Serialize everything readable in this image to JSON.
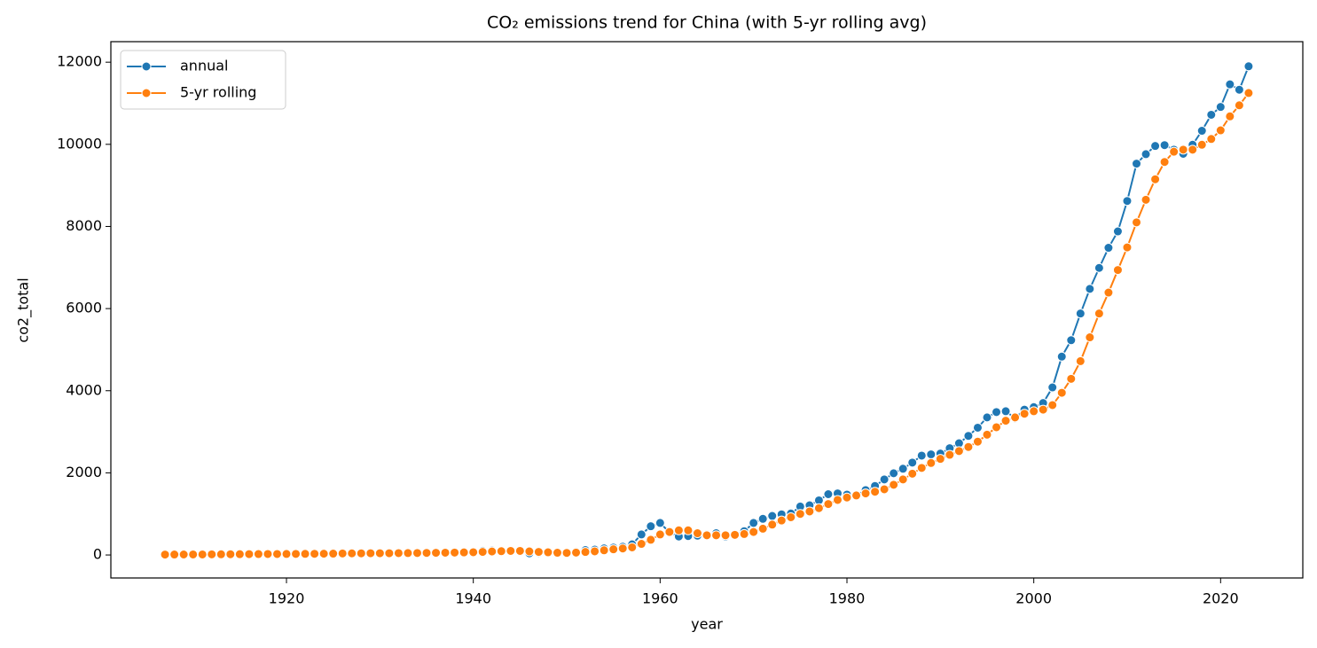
{
  "chart_data": {
    "type": "line",
    "title": "CO₂ emissions trend for China (with 5-yr rolling avg)",
    "x_label": "year",
    "y_label": "co2_total",
    "x": [
      1907,
      1908,
      1909,
      1910,
      1911,
      1912,
      1913,
      1914,
      1915,
      1916,
      1917,
      1918,
      1919,
      1920,
      1921,
      1922,
      1923,
      1924,
      1925,
      1926,
      1927,
      1928,
      1929,
      1930,
      1931,
      1932,
      1933,
      1934,
      1935,
      1936,
      1937,
      1938,
      1939,
      1940,
      1941,
      1942,
      1943,
      1944,
      1945,
      1946,
      1947,
      1948,
      1949,
      1950,
      1951,
      1952,
      1953,
      1954,
      1955,
      1956,
      1957,
      1958,
      1959,
      1960,
      1961,
      1962,
      1963,
      1964,
      1965,
      1966,
      1967,
      1968,
      1969,
      1970,
      1971,
      1972,
      1973,
      1974,
      1975,
      1976,
      1977,
      1978,
      1979,
      1980,
      1981,
      1982,
      1983,
      1984,
      1985,
      1986,
      1987,
      1988,
      1989,
      1990,
      1991,
      1992,
      1993,
      1994,
      1995,
      1996,
      1997,
      1998,
      1999,
      2000,
      2001,
      2002,
      2003,
      2004,
      2005,
      2006,
      2007,
      2008,
      2009,
      2010,
      2011,
      2012,
      2013,
      2014,
      2015,
      2016,
      2017,
      2018,
      2019,
      2020,
      2021,
      2022,
      2023
    ],
    "series": [
      {
        "name": "annual",
        "color": "#1f77b4",
        "values": [
          10,
          12,
          14,
          15,
          16,
          18,
          20,
          20,
          22,
          24,
          26,
          25,
          24,
          26,
          28,
          30,
          35,
          38,
          40,
          42,
          40,
          42,
          44,
          45,
          46,
          48,
          50,
          52,
          55,
          60,
          62,
          65,
          70,
          80,
          100,
          110,
          105,
          100,
          80,
          40,
          50,
          55,
          50,
          60,
          80,
          120,
          130,
          160,
          180,
          200,
          260,
          500,
          700,
          780,
          550,
          450,
          460,
          470,
          500,
          530,
          450,
          480,
          580,
          780,
          880,
          950,
          990,
          1010,
          1180,
          1210,
          1330,
          1480,
          1500,
          1470,
          1450,
          1580,
          1680,
          1840,
          1990,
          2100,
          2250,
          2420,
          2450,
          2470,
          2600,
          2720,
          2900,
          3100,
          3350,
          3480,
          3500,
          3330,
          3540,
          3600,
          3700,
          4080,
          4830,
          5230,
          5880,
          6480,
          6990,
          7480,
          7880,
          8620,
          9530,
          9760,
          9960,
          9980,
          9870,
          9770,
          9990,
          10330,
          10720,
          10910,
          11460,
          11330,
          11900
        ]
      },
      {
        "name": "5-yr rolling",
        "color": "#ff7f0e",
        "values": [
          10,
          11,
          12,
          13,
          13,
          15,
          17,
          18,
          19,
          21,
          22,
          23,
          24,
          25,
          26,
          27,
          29,
          31,
          33,
          37,
          39,
          40,
          42,
          43,
          43,
          45,
          47,
          48,
          50,
          53,
          56,
          59,
          62,
          67,
          75,
          85,
          92,
          99,
          99,
          87,
          75,
          65,
          55,
          51,
          59,
          73,
          88,
          114,
          138,
          158,
          186,
          270,
          370,
          500,
          560,
          600,
          600,
          530,
          480,
          480,
          480,
          490,
          510,
          560,
          640,
          740,
          840,
          920,
          1000,
          1060,
          1140,
          1240,
          1340,
          1400,
          1450,
          1500,
          1540,
          1600,
          1710,
          1840,
          1980,
          2120,
          2240,
          2340,
          2440,
          2530,
          2630,
          2760,
          2930,
          3110,
          3270,
          3350,
          3440,
          3500,
          3540,
          3650,
          3950,
          4290,
          4720,
          5300,
          5880,
          6390,
          6940,
          7490,
          8100,
          8650,
          9150,
          9570,
          9820,
          9870,
          9870,
          9990,
          10130,
          10340,
          10680,
          10950,
          11250
        ]
      }
    ],
    "xlim": [
      1901.2,
      2028.8
    ],
    "ylim": [
      -560,
      12500
    ],
    "xticks": [
      1920,
      1940,
      1960,
      1980,
      2000,
      2020
    ],
    "yticks": [
      0,
      2000,
      4000,
      6000,
      8000,
      10000,
      12000
    ],
    "legend": "upper left",
    "grid": false
  }
}
